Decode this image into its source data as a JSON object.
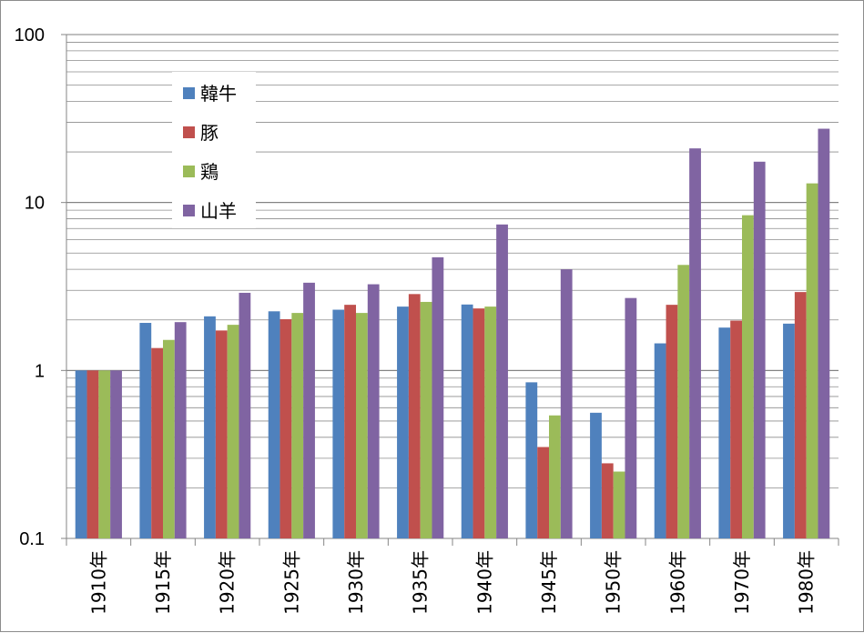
{
  "chart_data": {
    "type": "bar",
    "y_scale": "log",
    "ylim": [
      0.1,
      100
    ],
    "y_ticks": [
      "0.1",
      "1",
      "10",
      "100"
    ],
    "grid": "horizontal minor and major",
    "legend_position": "top-left inside plot",
    "categories": [
      "1910年",
      "1915年",
      "1920年",
      "1925年",
      "1930年",
      "1935年",
      "1940年",
      "1945年",
      "1950年",
      "1960年",
      "1970年",
      "1980年"
    ],
    "series": [
      {
        "name": "韓牛",
        "color": "#4f81bd",
        "values": [
          1.0,
          1.92,
          2.1,
          2.25,
          2.3,
          2.4,
          2.47,
          0.85,
          0.56,
          1.45,
          1.8,
          1.9
        ]
      },
      {
        "name": "豚",
        "color": "#c0504d",
        "values": [
          1.0,
          1.36,
          1.73,
          2.02,
          2.46,
          2.85,
          2.34,
          0.35,
          0.28,
          2.46,
          1.98,
          2.93
        ]
      },
      {
        "name": "鶏",
        "color": "#9bbb59",
        "values": [
          1.0,
          1.52,
          1.87,
          2.2,
          2.2,
          2.56,
          2.4,
          0.54,
          0.25,
          4.25,
          8.4,
          13.0
        ]
      },
      {
        "name": "山羊",
        "color": "#8064a2",
        "values": [
          1.0,
          1.94,
          2.9,
          3.33,
          3.26,
          4.72,
          7.4,
          4.0,
          2.7,
          21.0,
          17.5,
          27.5
        ]
      }
    ]
  }
}
